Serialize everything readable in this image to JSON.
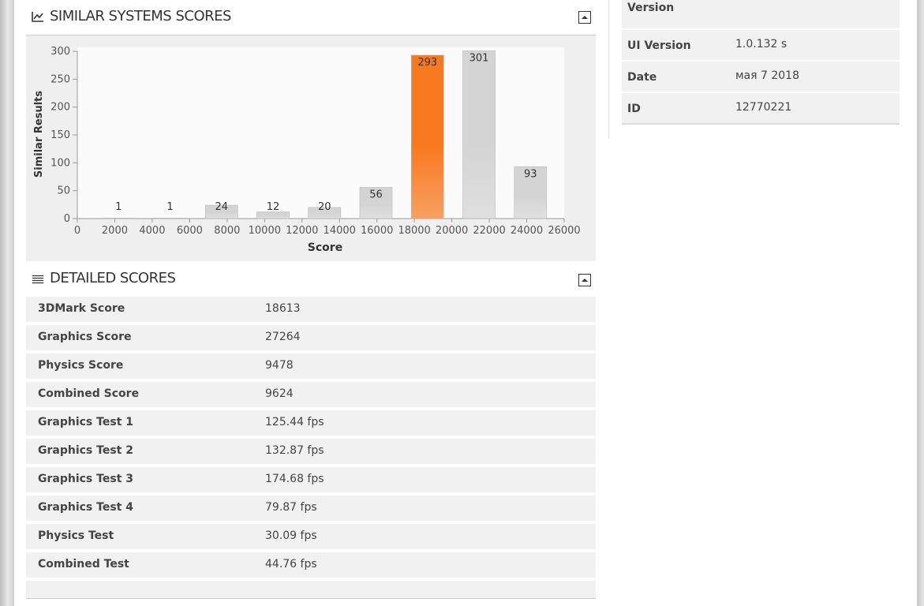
{
  "similar_scores": {
    "title": "SIMILAR SYSTEMS SCORES"
  },
  "chart_data": {
    "type": "bar",
    "x_label": "Score",
    "y_label": "Similar Results",
    "x": [
      2200,
      4950,
      7700,
      10450,
      13200,
      15950,
      18700,
      21450,
      24200
    ],
    "values": [
      1,
      1,
      24,
      12,
      20,
      56,
      293,
      301,
      93
    ],
    "colors": [
      "#d4d4d4",
      "#d4d4d4",
      "#d4d4d4",
      "#d4d4d4",
      "#d4d4d4",
      "#d4d4d4",
      "#f7791f",
      "#d4d4d4",
      "#d4d4d4"
    ],
    "xlim": [
      0,
      26000
    ],
    "xticks": [
      0,
      2000,
      4000,
      6000,
      8000,
      10000,
      12000,
      14000,
      16000,
      18000,
      20000,
      22000,
      24000,
      26000
    ],
    "ylim": [
      0,
      300
    ],
    "yticks": [
      0,
      50,
      100,
      150,
      200,
      250,
      300
    ],
    "grid": false
  },
  "detailed_scores": {
    "title": "DETAILED SCORES",
    "rows": [
      [
        "3DMark Score",
        "18613"
      ],
      [
        "Graphics Score",
        "27264"
      ],
      [
        "Physics Score",
        "9478"
      ],
      [
        "Combined Score",
        "9624"
      ],
      [
        "Graphics Test 1",
        "125.44 fps"
      ],
      [
        "Graphics Test 2",
        "132.87 fps"
      ],
      [
        "Graphics Test 3",
        "174.68 fps"
      ],
      [
        "Graphics Test 4",
        "79.87 fps"
      ],
      [
        "Physics Test",
        "30.09 fps"
      ],
      [
        "Combined Test",
        "44.76 fps"
      ]
    ]
  },
  "info_table": {
    "rows": [
      {
        "label": "SystemInfo Version"
      },
      {
        "label": "UI Version",
        "value": "1.0.132 s"
      },
      {
        "label": "Date",
        "value": "мая 7 2018"
      },
      {
        "label": "ID",
        "value": "12770221"
      }
    ]
  }
}
